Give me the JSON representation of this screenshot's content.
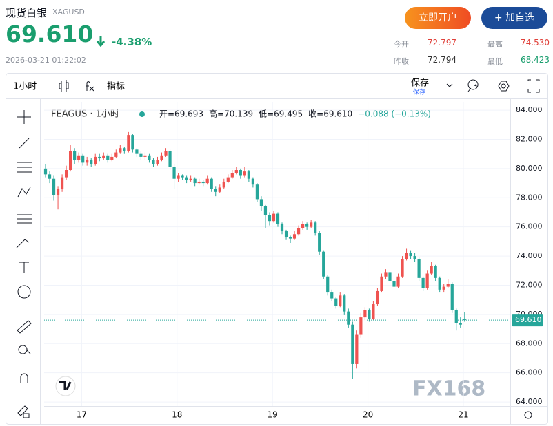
{
  "header": {
    "title": "现货白银",
    "code": "XAGUSD",
    "price": "69.610",
    "change": "-4.38%",
    "time": "2026-03-21 01:22:02",
    "buttons": [
      "立即开户",
      "+ 加自选"
    ],
    "stats": [
      [
        "今开",
        "72.797"
      ],
      [
        "最高",
        "74.530"
      ],
      [
        "昨收",
        "72.794"
      ],
      [
        "最低",
        "68.423"
      ]
    ]
  },
  "toolbar": {
    "interval": "1小时",
    "indicators": "指标",
    "save": "保存",
    "save_sub": "保存"
  },
  "watermark": "FX168",
  "chart_data": {
    "type": "candlestick",
    "title": "FEAGUS · 1小时",
    "legend": [
      "开=69.693",
      "高=70.139",
      "低=69.495",
      "收=69.610",
      "−0.088 (−0.13%)"
    ],
    "up_color": "#ef5350",
    "down_color": "#26a69a",
    "grid": true,
    "last": {
      "value": 69.61,
      "label": "69.610"
    },
    "ylim": [
      63.72,
      84.57
    ],
    "yticks": [
      {
        "value": 64,
        "label": "64.000"
      },
      {
        "value": 66,
        "label": "66.000"
      },
      {
        "value": 68,
        "label": "68.000"
      },
      {
        "value": 70,
        "label": "70.000"
      },
      {
        "value": 72,
        "label": "72.000"
      },
      {
        "value": 74,
        "label": "74.000"
      },
      {
        "value": 76,
        "label": "76.000"
      },
      {
        "value": 78,
        "label": "78.000"
      },
      {
        "value": 80,
        "label": "80.000"
      },
      {
        "value": 82,
        "label": "82.000"
      },
      {
        "value": 84,
        "label": "84.000"
      }
    ],
    "xlim": [
      -0.5,
      112
    ],
    "xticks": [
      {
        "value": 8.7,
        "label": "17"
      },
      {
        "value": 31.7,
        "label": "18"
      },
      {
        "value": 54.7,
        "label": "19"
      },
      {
        "value": 77.7,
        "label": "20"
      },
      {
        "value": 100.7,
        "label": "21"
      }
    ],
    "candles": [
      [
        80.0,
        80.3,
        79.4,
        79.6
      ],
      [
        79.6,
        79.8,
        79.0,
        79.3
      ],
      [
        79.3,
        79.5,
        77.8,
        78.2
      ],
      [
        78.2,
        78.8,
        77.2,
        78.6
      ],
      [
        78.6,
        79.6,
        78.4,
        79.4
      ],
      [
        79.4,
        80.2,
        79.2,
        79.9
      ],
      [
        79.9,
        81.6,
        79.8,
        81.2
      ],
      [
        81.2,
        81.4,
        80.3,
        80.6
      ],
      [
        80.6,
        81.1,
        80.4,
        80.9
      ],
      [
        80.9,
        81.0,
        80.2,
        80.4
      ],
      [
        80.4,
        80.8,
        80.2,
        80.6
      ],
      [
        80.6,
        80.7,
        80.1,
        80.3
      ],
      [
        80.3,
        81.0,
        80.2,
        80.8
      ],
      [
        80.8,
        81.0,
        80.5,
        80.7
      ],
      [
        80.7,
        81.1,
        80.6,
        80.9
      ],
      [
        80.9,
        81.0,
        80.4,
        80.6
      ],
      [
        80.6,
        81.0,
        80.5,
        80.8
      ],
      [
        80.8,
        81.3,
        80.7,
        81.1
      ],
      [
        81.1,
        81.6,
        81.0,
        81.4
      ],
      [
        81.4,
        81.5,
        81.0,
        81.2
      ],
      [
        81.2,
        82.5,
        81.1,
        82.3
      ],
      [
        82.3,
        82.4,
        81.1,
        81.3
      ],
      [
        81.3,
        81.4,
        80.8,
        81.0
      ],
      [
        81.0,
        81.2,
        80.6,
        80.8
      ],
      [
        80.8,
        81.1,
        80.6,
        80.9
      ],
      [
        80.9,
        81.0,
        80.4,
        80.6
      ],
      [
        80.6,
        80.7,
        80.1,
        80.3
      ],
      [
        80.3,
        80.8,
        80.2,
        80.6
      ],
      [
        80.6,
        81.1,
        80.5,
        80.9
      ],
      [
        80.9,
        81.4,
        80.8,
        81.2
      ],
      [
        81.2,
        81.3,
        79.9,
        80.1
      ],
      [
        80.1,
        80.3,
        78.6,
        79.3
      ],
      [
        79.3,
        79.7,
        79.1,
        79.5
      ],
      [
        79.5,
        79.6,
        79.2,
        79.4
      ],
      [
        79.4,
        79.5,
        79.0,
        79.2
      ],
      [
        79.2,
        79.5,
        79.1,
        79.3
      ],
      [
        79.3,
        79.4,
        78.8,
        79.0
      ],
      [
        79.0,
        79.3,
        78.9,
        79.1
      ],
      [
        79.1,
        79.2,
        78.8,
        79.0
      ],
      [
        79.0,
        79.5,
        78.9,
        79.3
      ],
      [
        79.3,
        79.4,
        78.4,
        78.6
      ],
      [
        78.6,
        78.8,
        78.1,
        78.4
      ],
      [
        78.4,
        78.9,
        78.3,
        78.7
      ],
      [
        78.7,
        79.3,
        78.6,
        79.1
      ],
      [
        79.1,
        79.6,
        79.0,
        79.4
      ],
      [
        79.4,
        79.9,
        79.3,
        79.7
      ],
      [
        79.7,
        80.1,
        79.6,
        79.9
      ],
      [
        79.9,
        80.0,
        79.3,
        79.5
      ],
      [
        79.5,
        80.1,
        79.4,
        79.8
      ],
      [
        79.8,
        79.9,
        79.1,
        79.3
      ],
      [
        79.3,
        79.4,
        78.7,
        78.9
      ],
      [
        78.9,
        79.0,
        77.7,
        77.9
      ],
      [
        77.9,
        78.1,
        77.1,
        77.4
      ],
      [
        77.4,
        77.5,
        75.9,
        76.8
      ],
      [
        76.8,
        77.0,
        76.1,
        76.4
      ],
      [
        76.4,
        77.1,
        76.3,
        76.9
      ],
      [
        76.9,
        77.0,
        76.0,
        76.2
      ],
      [
        76.2,
        76.3,
        75.5,
        75.7
      ],
      [
        75.7,
        75.8,
        75.1,
        75.3
      ],
      [
        75.3,
        75.4,
        74.9,
        75.2
      ],
      [
        75.2,
        75.7,
        75.1,
        75.5
      ],
      [
        75.5,
        76.1,
        75.4,
        75.9
      ],
      [
        75.9,
        76.4,
        75.8,
        76.2
      ],
      [
        76.2,
        76.3,
        75.8,
        76.0
      ],
      [
        76.0,
        76.5,
        75.9,
        76.3
      ],
      [
        76.3,
        76.4,
        75.4,
        75.6
      ],
      [
        75.6,
        75.7,
        74.1,
        74.3
      ],
      [
        74.3,
        74.4,
        72.4,
        72.6
      ],
      [
        72.6,
        72.7,
        71.3,
        71.5
      ],
      [
        71.5,
        71.7,
        70.9,
        71.1
      ],
      [
        71.1,
        71.2,
        70.4,
        70.6
      ],
      [
        70.6,
        71.5,
        70.5,
        71.3
      ],
      [
        71.3,
        71.4,
        70.0,
        70.2
      ],
      [
        70.2,
        70.4,
        69.1,
        69.3
      ],
      [
        69.3,
        69.5,
        65.6,
        66.6
      ],
      [
        66.6,
        68.9,
        66.3,
        68.6
      ],
      [
        68.6,
        70.1,
        68.4,
        69.8
      ],
      [
        69.8,
        70.5,
        69.6,
        70.3
      ],
      [
        70.3,
        70.4,
        69.5,
        69.7
      ],
      [
        69.7,
        70.9,
        69.6,
        70.7
      ],
      [
        70.7,
        71.8,
        70.6,
        71.6
      ],
      [
        71.6,
        72.8,
        71.5,
        72.6
      ],
      [
        72.6,
        73.1,
        72.4,
        72.9
      ],
      [
        72.9,
        73.0,
        72.1,
        72.3
      ],
      [
        72.3,
        72.4,
        71.7,
        71.9
      ],
      [
        71.9,
        72.8,
        71.8,
        72.6
      ],
      [
        72.6,
        74.0,
        72.5,
        73.8
      ],
      [
        73.8,
        74.5,
        73.7,
        74.2
      ],
      [
        74.2,
        74.4,
        73.8,
        74.0
      ],
      [
        74.0,
        74.2,
        73.6,
        73.8
      ],
      [
        73.8,
        73.9,
        72.3,
        72.5
      ],
      [
        72.5,
        72.6,
        71.6,
        71.8
      ],
      [
        71.8,
        73.0,
        71.7,
        72.8
      ],
      [
        72.8,
        73.6,
        72.7,
        73.3
      ],
      [
        73.3,
        73.4,
        72.3,
        72.5
      ],
      [
        72.5,
        72.6,
        71.5,
        71.7
      ],
      [
        71.7,
        72.1,
        71.5,
        71.9
      ],
      [
        71.9,
        72.4,
        71.8,
        72.1
      ],
      [
        72.1,
        72.2,
        70.1,
        70.3
      ],
      [
        70.3,
        70.4,
        68.9,
        69.4
      ],
      [
        69.4,
        69.8,
        69.1,
        69.3
      ],
      [
        69.693,
        70.139,
        69.495,
        69.61
      ]
    ]
  }
}
